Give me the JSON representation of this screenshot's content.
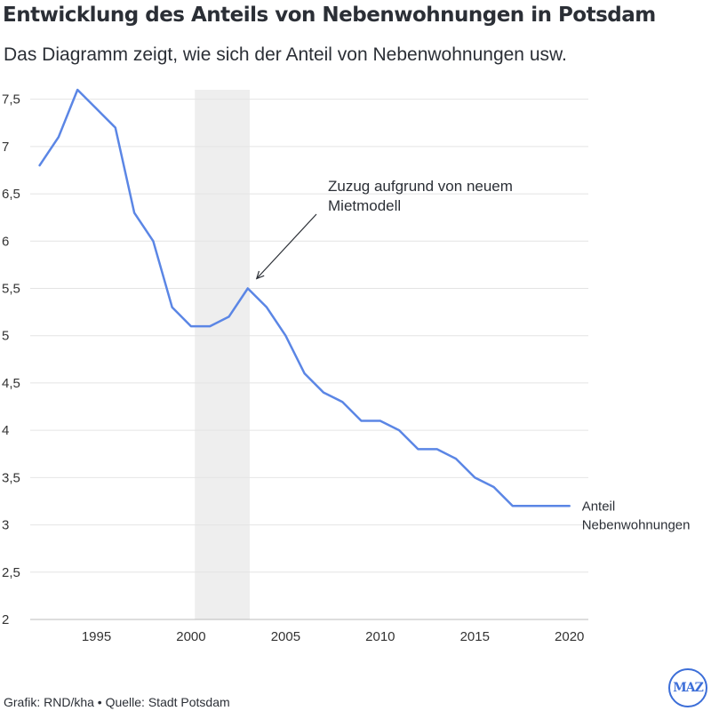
{
  "header": {
    "title": "Entwicklung des Anteils von Nebenwohnungen in Potsdam",
    "subtitle": "Das Diagramm zeigt, wie sich der Anteil von Nebenwohnungen usw."
  },
  "footer": {
    "credit": "Grafik: RND/kha • Quelle: Stadt Potsdam",
    "logo_text": "MAZ"
  },
  "colors": {
    "line": "#5b86e5",
    "grid": "#e4e4e4",
    "band": "#eeeeee",
    "text": "#333333",
    "brand": "#3c6ed8"
  },
  "chart_data": {
    "type": "line",
    "title": "Entwicklung des Anteils von Nebenwohnungen in Potsdam",
    "xlabel": "",
    "ylabel": "",
    "xlim": [
      1991.5,
      2021
    ],
    "ylim": [
      2,
      7.6
    ],
    "xticks": [
      1995,
      2000,
      2005,
      2010,
      2015,
      2020
    ],
    "yticks": [
      {
        "v": 2,
        "label": "2"
      },
      {
        "v": 2.5,
        "label": "2,5"
      },
      {
        "v": 3,
        "label": "3"
      },
      {
        "v": 3.5,
        "label": "3,5"
      },
      {
        "v": 4,
        "label": "4"
      },
      {
        "v": 4.5,
        "label": "4,5"
      },
      {
        "v": 5,
        "label": "5"
      },
      {
        "v": 5.5,
        "label": "5,5"
      },
      {
        "v": 6,
        "label": "6"
      },
      {
        "v": 6.5,
        "label": "6,5"
      },
      {
        "v": 7,
        "label": "7"
      },
      {
        "v": 7.5,
        "label": "7,5"
      }
    ],
    "grid": true,
    "highlight_band": [
      2000.2,
      2003.1
    ],
    "series": [
      {
        "name": "Anteil Nebenwohnungen",
        "label_lines": [
          "Anteil",
          "Nebenwohnungen"
        ],
        "x": [
          1992,
          1993,
          1994,
          1995,
          1996,
          1997,
          1998,
          1999,
          2000,
          2001,
          2002,
          2003,
          2004,
          2005,
          2006,
          2007,
          2008,
          2009,
          2010,
          2011,
          2012,
          2013,
          2014,
          2015,
          2016,
          2017,
          2018,
          2019,
          2020
        ],
        "values": [
          6.8,
          7.1,
          7.6,
          7.4,
          7.2,
          6.3,
          6.0,
          5.3,
          5.1,
          5.1,
          5.2,
          5.5,
          5.3,
          5.0,
          4.6,
          4.4,
          4.3,
          4.1,
          4.1,
          4.0,
          3.8,
          3.8,
          3.7,
          3.5,
          3.4,
          3.2,
          3.2,
          3.2,
          3.2
        ]
      }
    ],
    "annotations": [
      {
        "text_lines": [
          "Zuzug aufgrund von neuem",
          "Mietmodell"
        ],
        "target": {
          "x": 2003,
          "y": 5.5
        }
      }
    ]
  }
}
